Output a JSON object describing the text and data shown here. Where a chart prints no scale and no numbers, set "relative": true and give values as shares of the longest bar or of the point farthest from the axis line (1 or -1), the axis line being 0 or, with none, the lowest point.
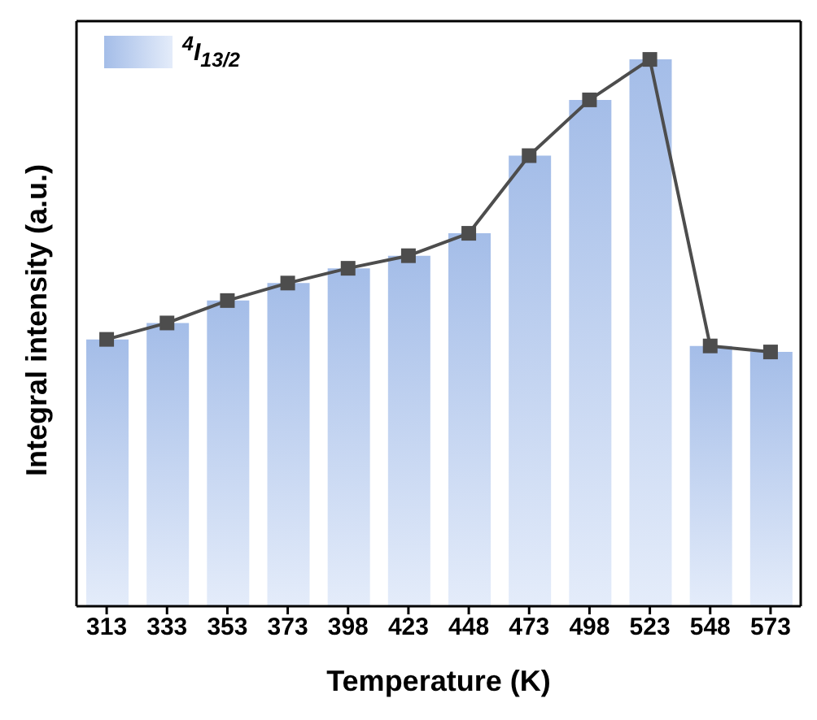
{
  "chart_data": {
    "type": "bar",
    "relative": true,
    "xlabel": "Temperature (K)",
    "ylabel": "Integral intensity (a.u.)",
    "categories": [
      "313",
      "333",
      "353",
      "373",
      "398",
      "423",
      "448",
      "473",
      "498",
      "523",
      "548",
      "573"
    ],
    "series": [
      {
        "name": "$^{4}$I$_{13/2}$",
        "color": "#a4bde8",
        "values": [
          0.488,
          0.518,
          0.559,
          0.591,
          0.618,
          0.641,
          0.682,
          0.824,
          0.926,
          1,
          0.476,
          0.465
        ]
      },
      {
        "type": "line",
        "color": "#4d4d4d",
        "marker": "square",
        "values": [
          0.488,
          0.518,
          0.559,
          0.591,
          0.618,
          0.641,
          0.682,
          0.824,
          0.926,
          1,
          0.476,
          0.465
        ]
      }
    ],
    "legend": "top left",
    "tick_labels": "x"
  }
}
